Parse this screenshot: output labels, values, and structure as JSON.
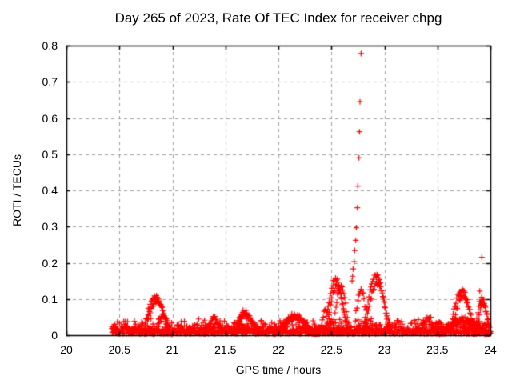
{
  "chart_data": {
    "type": "scatter",
    "title": "Day 265 of 2023, Rate Of TEC Index for receiver chpg",
    "xlabel": "GPS time / hours",
    "ylabel": "ROTI / TECUs",
    "xlim": [
      20,
      24
    ],
    "ylim": [
      0,
      0.8
    ],
    "xticks": [
      "20",
      "20.5",
      "21",
      "21.5",
      "22",
      "22.5",
      "23",
      "23.5",
      "24"
    ],
    "yticks": [
      "0",
      "0.1",
      "0.2",
      "0.3",
      "0.4",
      "0.5",
      "0.6",
      "0.7",
      "0.8"
    ],
    "grid": true,
    "legend": "none",
    "marker": "+",
    "colors": {
      "marker": "#ff0000",
      "grid": "#9e9e9e",
      "axis": "#000000",
      "background": "#ffffff",
      "text": "#000000"
    },
    "visible_peaks": [
      [
        20.85,
        0.105
      ],
      [
        21.39,
        0.05
      ],
      [
        21.67,
        0.065
      ],
      [
        22.15,
        0.055
      ],
      [
        22.55,
        0.155
      ],
      [
        22.78,
        0.78
      ],
      [
        22.94,
        0.165
      ],
      [
        23.41,
        0.05
      ],
      [
        23.73,
        0.125
      ],
      [
        23.92,
        0.215
      ]
    ],
    "spike_points": [
      [
        22.695,
        0.15
      ],
      [
        22.7,
        0.163
      ],
      [
        22.705,
        0.183
      ],
      [
        22.715,
        0.203
      ],
      [
        22.72,
        0.234
      ],
      [
        22.73,
        0.262
      ],
      [
        22.735,
        0.297
      ],
      [
        22.745,
        0.352
      ],
      [
        22.75,
        0.412
      ],
      [
        22.76,
        0.49
      ],
      [
        22.765,
        0.562
      ],
      [
        22.77,
        0.645
      ],
      [
        22.78,
        0.778
      ],
      [
        23.9,
        0.122
      ],
      [
        23.92,
        0.215
      ],
      [
        23.93,
        0.099
      ]
    ],
    "point_generation": {
      "seed": 20230265,
      "sample_step_hours": 0.008333,
      "band": {
        "x_start": 20.43,
        "x_end": 24.0,
        "v_min": 0.004,
        "v_max": 0.048,
        "points_per_step": 3
      },
      "bumps": [
        {
          "x_start": 20.7,
          "x_end": 20.98,
          "peak": 0.105,
          "tracks": 2
        },
        {
          "x_start": 20.82,
          "x_end": 21.0,
          "peak": 0.055,
          "tracks": 1
        },
        {
          "x_start": 21.3,
          "x_end": 21.48,
          "peak": 0.048,
          "tracks": 1
        },
        {
          "x_start": 21.56,
          "x_end": 21.8,
          "peak": 0.065,
          "tracks": 2
        },
        {
          "x_start": 21.95,
          "x_end": 22.35,
          "peak": 0.055,
          "tracks": 2
        },
        {
          "x_start": 22.38,
          "x_end": 22.52,
          "peak": 0.07,
          "tracks": 1
        },
        {
          "x_start": 22.42,
          "x_end": 22.66,
          "peak": 0.155,
          "tracks": 2
        },
        {
          "x_start": 22.5,
          "x_end": 22.68,
          "peak": 0.135,
          "tracks": 1
        },
        {
          "x_start": 22.7,
          "x_end": 22.86,
          "peak": 0.125,
          "tracks": 1
        },
        {
          "x_start": 22.78,
          "x_end": 23.06,
          "peak": 0.165,
          "tracks": 2
        },
        {
          "x_start": 23.33,
          "x_end": 23.5,
          "peak": 0.05,
          "tracks": 1
        },
        {
          "x_start": 23.6,
          "x_end": 23.86,
          "peak": 0.125,
          "tracks": 2
        },
        {
          "x_start": 23.84,
          "x_end": 24.0,
          "peak": 0.1,
          "tracks": 2
        },
        {
          "x_start": 23.5,
          "x_end": 24.0,
          "peak": 0.045,
          "tracks": 2
        }
      ]
    }
  }
}
